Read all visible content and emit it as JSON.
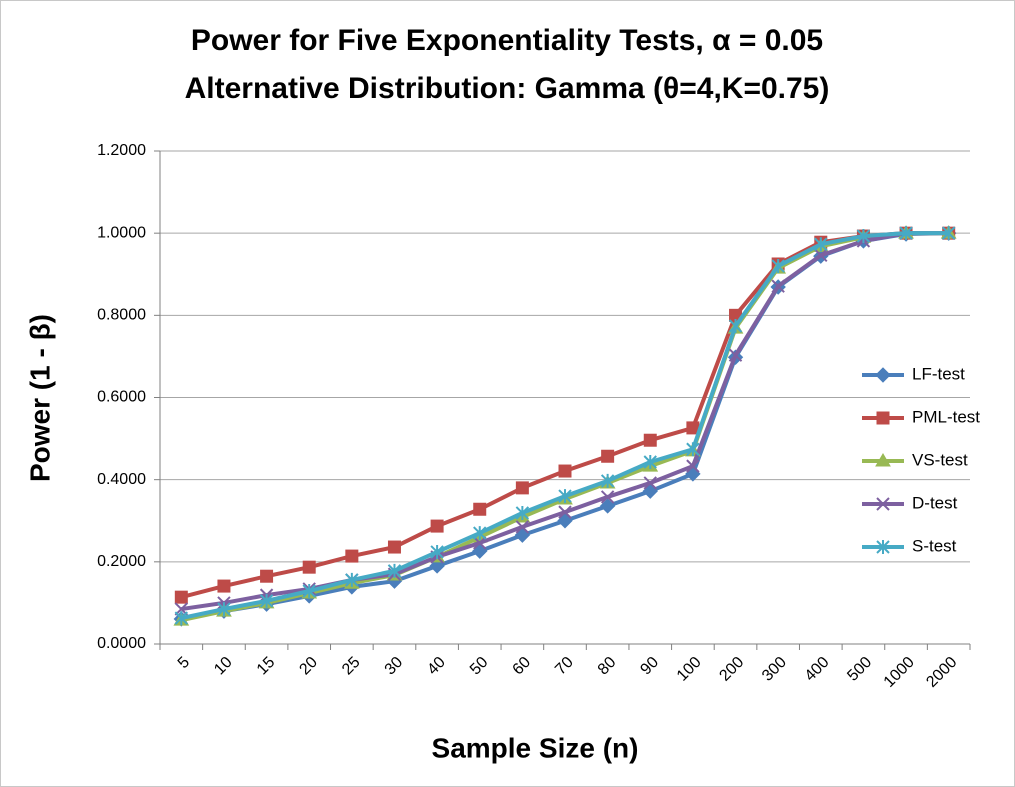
{
  "chart_data": {
    "type": "line",
    "title": "Power for Five Exponentiality Tests, α = 0.05",
    "subtitle": "Alternative Distribution: Gamma (θ=4,K=0.75)",
    "x_label": "Sample Size (n)",
    "y_label": "Power (1 - β)",
    "categories": [
      "5",
      "10",
      "15",
      "20",
      "25",
      "30",
      "40",
      "50",
      "60",
      "70",
      "80",
      "90",
      "100",
      "200",
      "300",
      "400",
      "500",
      "1000",
      "2000"
    ],
    "ylim": [
      0,
      1.2
    ],
    "yticks": [
      {
        "value": 0,
        "label": "0.0000"
      },
      {
        "value": 0.2,
        "label": "0.2000"
      },
      {
        "value": 0.4,
        "label": "0.4000"
      },
      {
        "value": 0.6,
        "label": "0.6000"
      },
      {
        "value": 0.8,
        "label": "0.8000"
      },
      {
        "value": 1.0,
        "label": "1.0000"
      },
      {
        "value": 1.2,
        "label": "1.2000"
      }
    ],
    "grid": true,
    "legend": "right",
    "series": [
      {
        "name": "LF-test",
        "color": "#4a7ebb",
        "marker": "diamond",
        "values": [
          0.061,
          0.08,
          0.097,
          0.117,
          0.139,
          0.153,
          0.19,
          0.226,
          0.265,
          0.3,
          0.336,
          0.372,
          0.414,
          0.698,
          0.869,
          0.944,
          0.981,
          0.998,
          1.0
        ]
      },
      {
        "name": "PML-test",
        "color": "#be4b48",
        "marker": "square",
        "values": [
          0.114,
          0.141,
          0.165,
          0.187,
          0.214,
          0.236,
          0.287,
          0.328,
          0.38,
          0.421,
          0.457,
          0.496,
          0.526,
          0.8,
          0.925,
          0.978,
          0.993,
          1.0,
          1.0
        ]
      },
      {
        "name": "VS-test",
        "color": "#98b954",
        "marker": "triangle",
        "values": [
          0.058,
          0.08,
          0.1,
          0.124,
          0.148,
          0.168,
          0.212,
          0.26,
          0.309,
          0.353,
          0.392,
          0.433,
          0.47,
          0.769,
          0.915,
          0.968,
          0.99,
          1.0,
          1.0
        ]
      },
      {
        "name": "D-test",
        "color": "#7d60a0",
        "marker": "x",
        "values": [
          0.085,
          0.1,
          0.119,
          0.134,
          0.156,
          0.17,
          0.212,
          0.246,
          0.285,
          0.321,
          0.358,
          0.392,
          0.433,
          0.703,
          0.871,
          0.946,
          0.981,
          1.0,
          1.0
        ]
      },
      {
        "name": "S-test",
        "color": "#46aac5",
        "marker": "star",
        "values": [
          0.063,
          0.085,
          0.105,
          0.129,
          0.156,
          0.178,
          0.224,
          0.27,
          0.319,
          0.36,
          0.397,
          0.443,
          0.474,
          0.774,
          0.92,
          0.973,
          0.993,
          1.0,
          1.0
        ]
      }
    ]
  }
}
